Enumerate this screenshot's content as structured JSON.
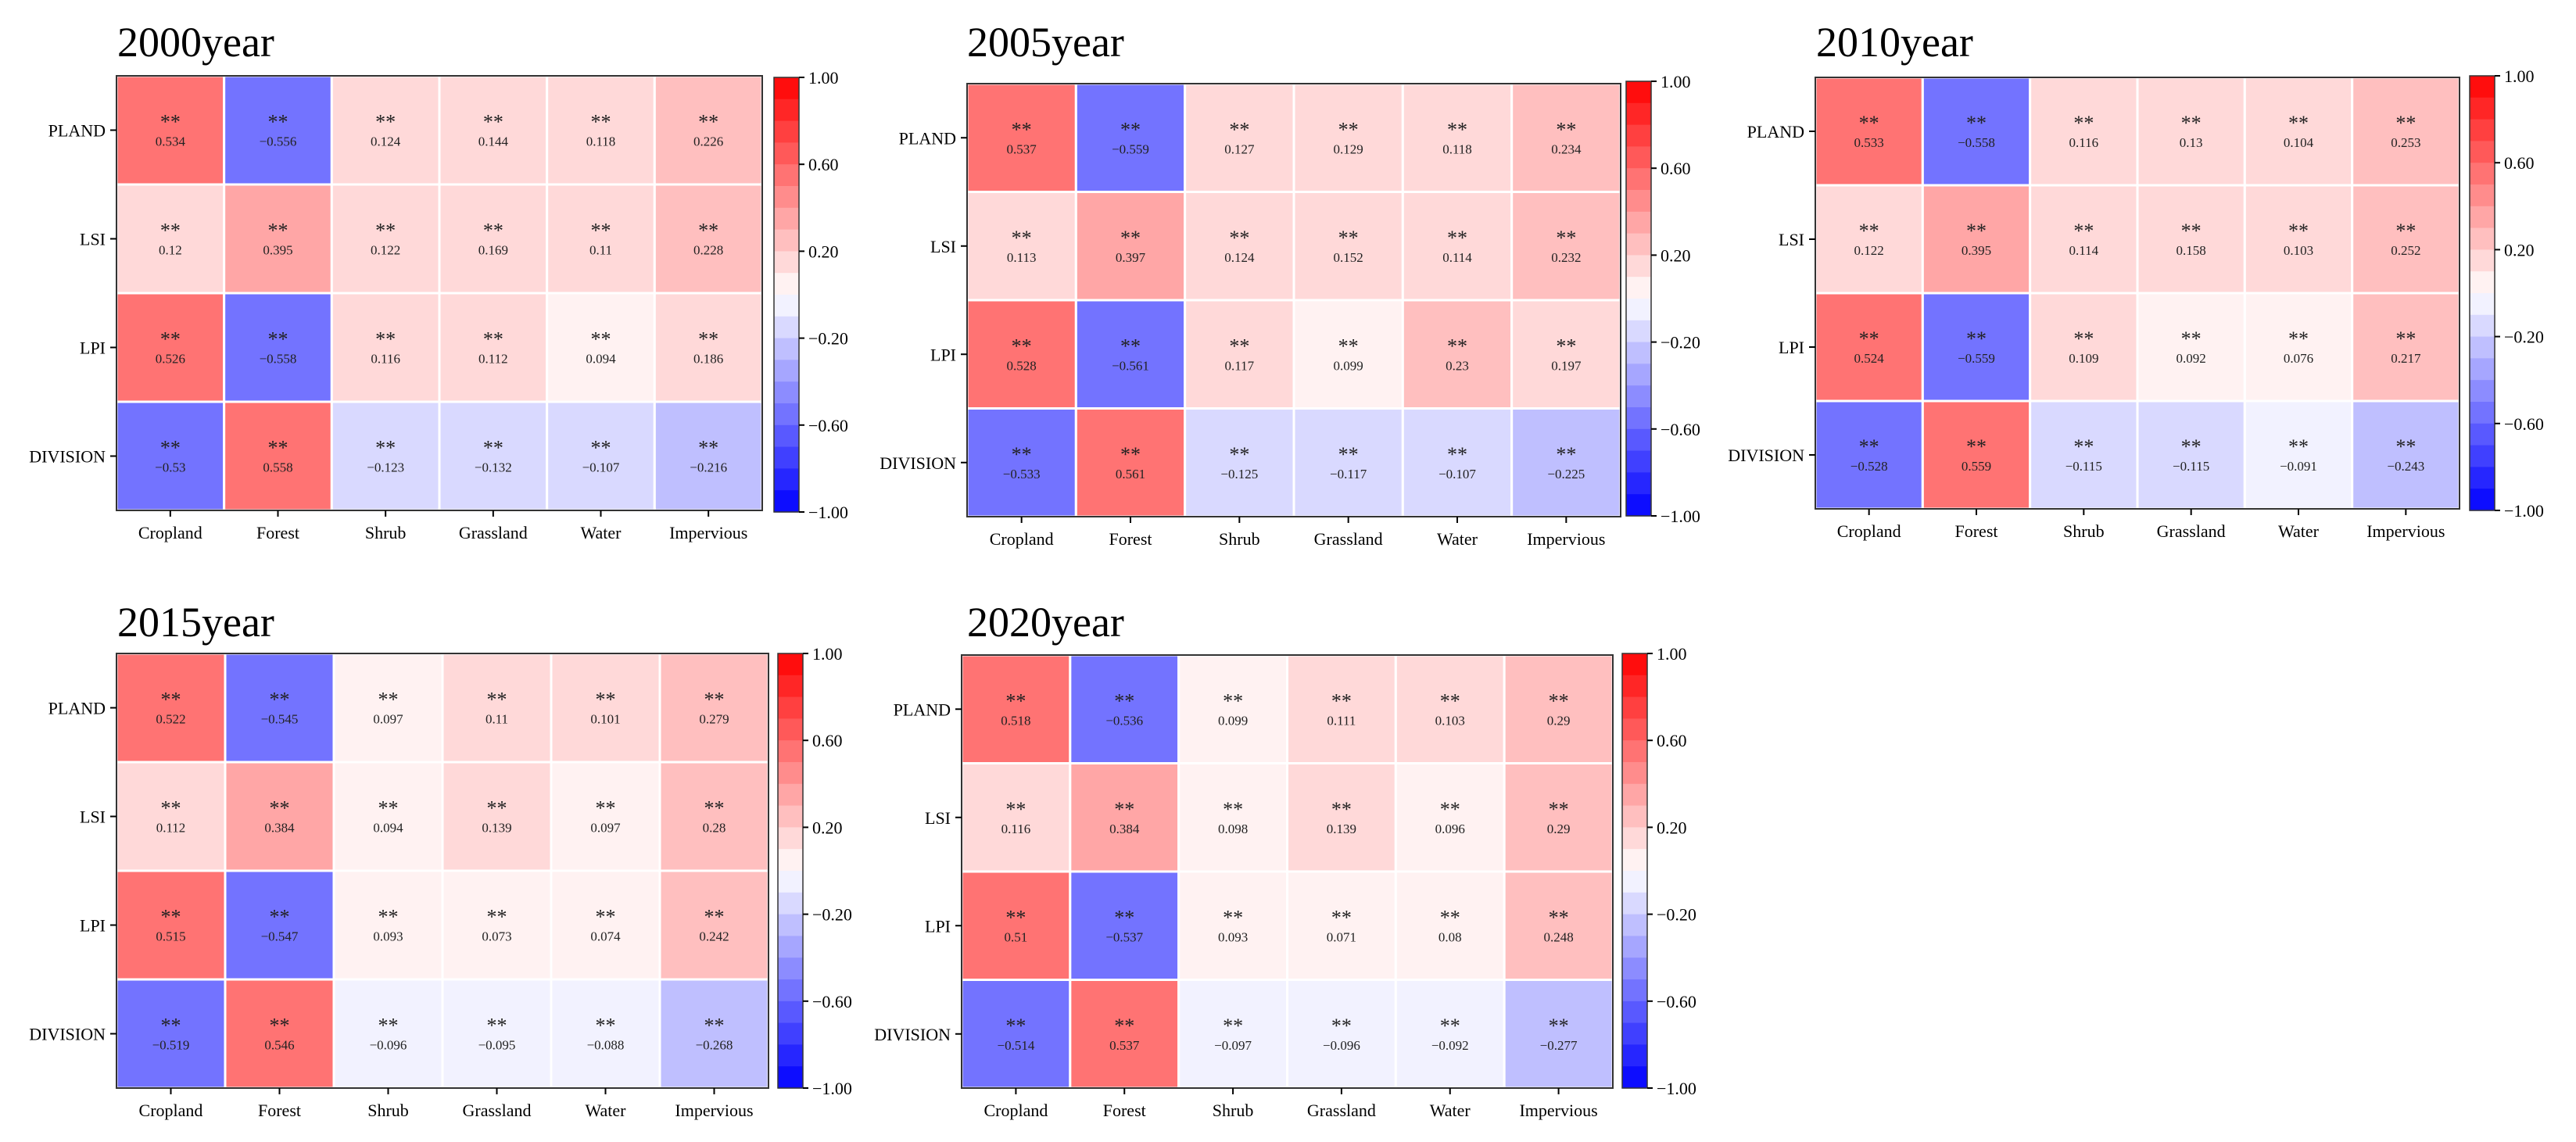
{
  "chart_data": [
    {
      "type": "heatmap",
      "title": "2000year",
      "rows": [
        "PLAND",
        "LSI",
        "LPI",
        "DIVISION"
      ],
      "columns": [
        "Cropland",
        "Forest",
        "Shrub",
        "Grassland",
        "Water",
        "Impervious"
      ],
      "values": [
        [
          0.534,
          -0.556,
          0.124,
          0.144,
          0.118,
          0.226
        ],
        [
          0.12,
          0.395,
          0.122,
          0.169,
          0.11,
          0.228
        ],
        [
          0.526,
          -0.558,
          0.116,
          0.112,
          0.094,
          0.186
        ],
        [
          -0.53,
          0.558,
          -0.123,
          -0.132,
          -0.107,
          -0.216
        ]
      ],
      "significance": "**",
      "colorbar": {
        "min": -1.0,
        "max": 1.0,
        "ticks": [
          "1.00",
          "0.60",
          "0.20",
          "-0.20",
          "-0.60",
          "-1.00"
        ]
      }
    },
    {
      "type": "heatmap",
      "title": "2005year",
      "rows": [
        "PLAND",
        "LSI",
        "LPI",
        "DIVISION"
      ],
      "columns": [
        "Cropland",
        "Forest",
        "Shrub",
        "Grassland",
        "Water",
        "Impervious"
      ],
      "values": [
        [
          0.537,
          -0.559,
          0.127,
          0.129,
          0.118,
          0.234
        ],
        [
          0.113,
          0.397,
          0.124,
          0.152,
          0.114,
          0.232
        ],
        [
          0.528,
          -0.561,
          0.117,
          0.099,
          0.23,
          0.197
        ],
        [
          -0.533,
          0.561,
          -0.125,
          -0.117,
          -0.107,
          -0.225
        ]
      ],
      "significance": "**",
      "colorbar": {
        "min": -1.0,
        "max": 1.0,
        "ticks": [
          "1.00",
          "0.60",
          "0.20",
          "-0.20",
          "-0.60",
          "-1.00"
        ]
      }
    },
    {
      "type": "heatmap",
      "title": "2010year",
      "rows": [
        "PLAND",
        "LSI",
        "LPI",
        "DIVISION"
      ],
      "columns": [
        "Cropland",
        "Forest",
        "Shrub",
        "Grassland",
        "Water",
        "Impervious"
      ],
      "values": [
        [
          0.533,
          -0.558,
          0.116,
          0.13,
          0.104,
          0.253
        ],
        [
          0.122,
          0.395,
          0.114,
          0.158,
          0.103,
          0.252
        ],
        [
          0.524,
          -0.559,
          0.109,
          0.092,
          0.076,
          0.217
        ],
        [
          -0.528,
          0.559,
          -0.115,
          -0.115,
          -0.091,
          -0.243
        ]
      ],
      "significance": "**",
      "colorbar": {
        "min": -1.0,
        "max": 1.0,
        "ticks": [
          "1.00",
          "0.60",
          "0.20",
          "-0.20",
          "-0.60",
          "-1.00"
        ]
      }
    },
    {
      "type": "heatmap",
      "title": "2015year",
      "rows": [
        "PLAND",
        "LSI",
        "LPI",
        "DIVISION"
      ],
      "columns": [
        "Cropland",
        "Forest",
        "Shrub",
        "Grassland",
        "Water",
        "Impervious"
      ],
      "values": [
        [
          0.522,
          -0.545,
          0.097,
          0.11,
          0.101,
          0.279
        ],
        [
          0.112,
          0.384,
          0.094,
          0.139,
          0.097,
          0.28
        ],
        [
          0.515,
          -0.547,
          0.093,
          0.073,
          0.074,
          0.242
        ],
        [
          -0.519,
          0.546,
          -0.096,
          -0.095,
          -0.088,
          -0.268
        ]
      ],
      "significance": "**",
      "colorbar": {
        "min": -1.0,
        "max": 1.0,
        "ticks": [
          "1.00",
          "0.60",
          "0.20",
          "-0.20",
          "-0.60",
          "-1.00"
        ]
      }
    },
    {
      "type": "heatmap",
      "title": "2020year",
      "rows": [
        "PLAND",
        "LSI",
        "LPI",
        "DIVISION"
      ],
      "columns": [
        "Cropland",
        "Forest",
        "Shrub",
        "Grassland",
        "Water",
        "Impervious"
      ],
      "values": [
        [
          0.518,
          -0.536,
          0.099,
          0.111,
          0.103,
          0.29
        ],
        [
          0.116,
          0.384,
          0.098,
          0.139,
          0.096,
          0.29
        ],
        [
          0.51,
          -0.537,
          0.093,
          0.071,
          0.08,
          0.248
        ],
        [
          -0.514,
          0.537,
          -0.097,
          -0.096,
          -0.092,
          -0.277
        ]
      ],
      "significance": "**",
      "colorbar": {
        "min": -1.0,
        "max": 1.0,
        "ticks": [
          "1.00",
          "0.60",
          "0.20",
          "-0.20",
          "-0.60",
          "-1.00"
        ]
      }
    }
  ]
}
